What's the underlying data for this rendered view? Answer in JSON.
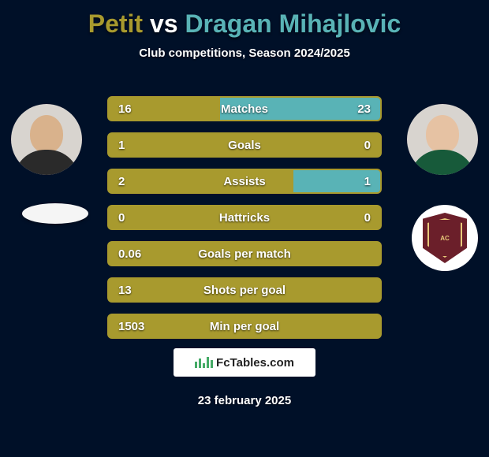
{
  "title": {
    "player1": "Petit",
    "vs": "vs",
    "player2": "Dragan Mihajlovic",
    "color_player1": "#a89a2e",
    "color_player2": "#59b3b6",
    "color_vs": "#ffffff"
  },
  "subtitle": "Club competitions, Season 2024/2025",
  "player_left": {
    "avatar_skin": "#d9b28c",
    "avatar_shirt": "#2a2a2a"
  },
  "player_right": {
    "avatar_skin": "#e6c2a3",
    "avatar_shirt": "#175a3a"
  },
  "club_right": {
    "shield_bg": "#6b1f2a",
    "shield_trim": "#e8c97a",
    "shield_text": "AC"
  },
  "stats": {
    "bar_bg_left": "#a89a2e",
    "bar_bg_right": "#59b3b6",
    "bar_bg_track": "#a89a2e",
    "rows": [
      {
        "label": "Matches",
        "left_val": "16",
        "right_val": "23",
        "left_pct": 41,
        "right_pct": 59
      },
      {
        "label": "Goals",
        "left_val": "1",
        "right_val": "0",
        "left_pct": 78,
        "right_pct": 0
      },
      {
        "label": "Assists",
        "left_val": "2",
        "right_val": "1",
        "left_pct": 64,
        "right_pct": 32
      },
      {
        "label": "Hattricks",
        "left_val": "0",
        "right_val": "0",
        "left_pct": 0,
        "right_pct": 0
      },
      {
        "label": "Goals per match",
        "left_val": "0.06",
        "right_val": "",
        "left_pct": 100,
        "right_pct": 0
      },
      {
        "label": "Shots per goal",
        "left_val": "13",
        "right_val": "",
        "left_pct": 100,
        "right_pct": 0
      },
      {
        "label": "Min per goal",
        "left_val": "1503",
        "right_val": "",
        "left_pct": 100,
        "right_pct": 0
      }
    ]
  },
  "footer": {
    "brand_prefix": "Fc",
    "brand_suffix": "Tables.com",
    "date": "23 february 2025"
  },
  "colors": {
    "page_bg": "#001028"
  }
}
